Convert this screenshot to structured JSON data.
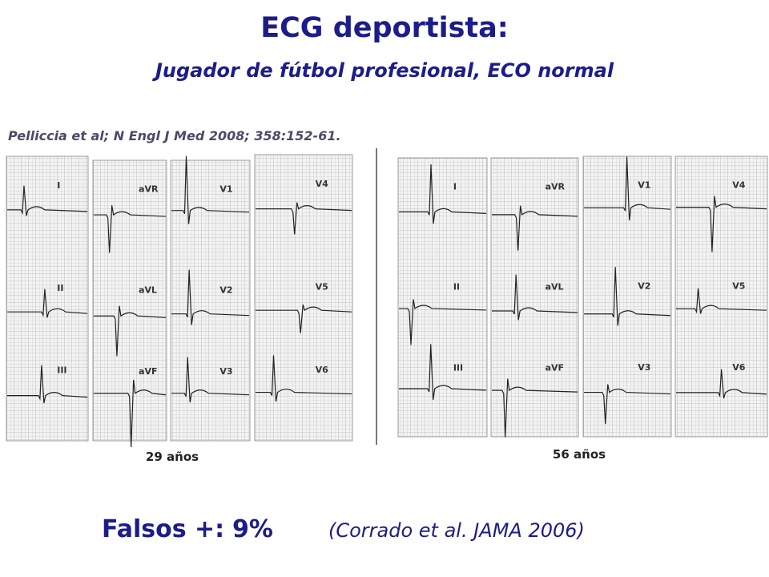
{
  "title": "ECG deportista:",
  "subtitle": "Jugador de fútbol profesional, ECO normal",
  "citation": "Pelliccia et al; N Engl J Med 2008; 358:152-61.",
  "ecg_panels": [
    {
      "age": "29 años",
      "strips": [
        {
          "leads": [
            "I",
            "II",
            "III"
          ]
        },
        {
          "leads": [
            "aVR",
            "aVL",
            "aVF"
          ]
        },
        {
          "leads": [
            "V1",
            "V2",
            "V3"
          ]
        },
        {
          "leads": [
            "V4",
            "V5",
            "V6"
          ]
        }
      ]
    },
    {
      "age": "56 años",
      "strips": [
        {
          "leads": [
            "I",
            "II",
            "III"
          ]
        },
        {
          "leads": [
            "aVR",
            "aVL",
            "aVF"
          ]
        },
        {
          "leads": [
            "V1",
            "V2",
            "V3"
          ]
        },
        {
          "leads": [
            "V4",
            "V5",
            "V6"
          ]
        }
      ]
    }
  ],
  "footer": {
    "label": "Falsos +:",
    "value": "9%",
    "source": "(Corrado et al. JAMA 2006)"
  }
}
